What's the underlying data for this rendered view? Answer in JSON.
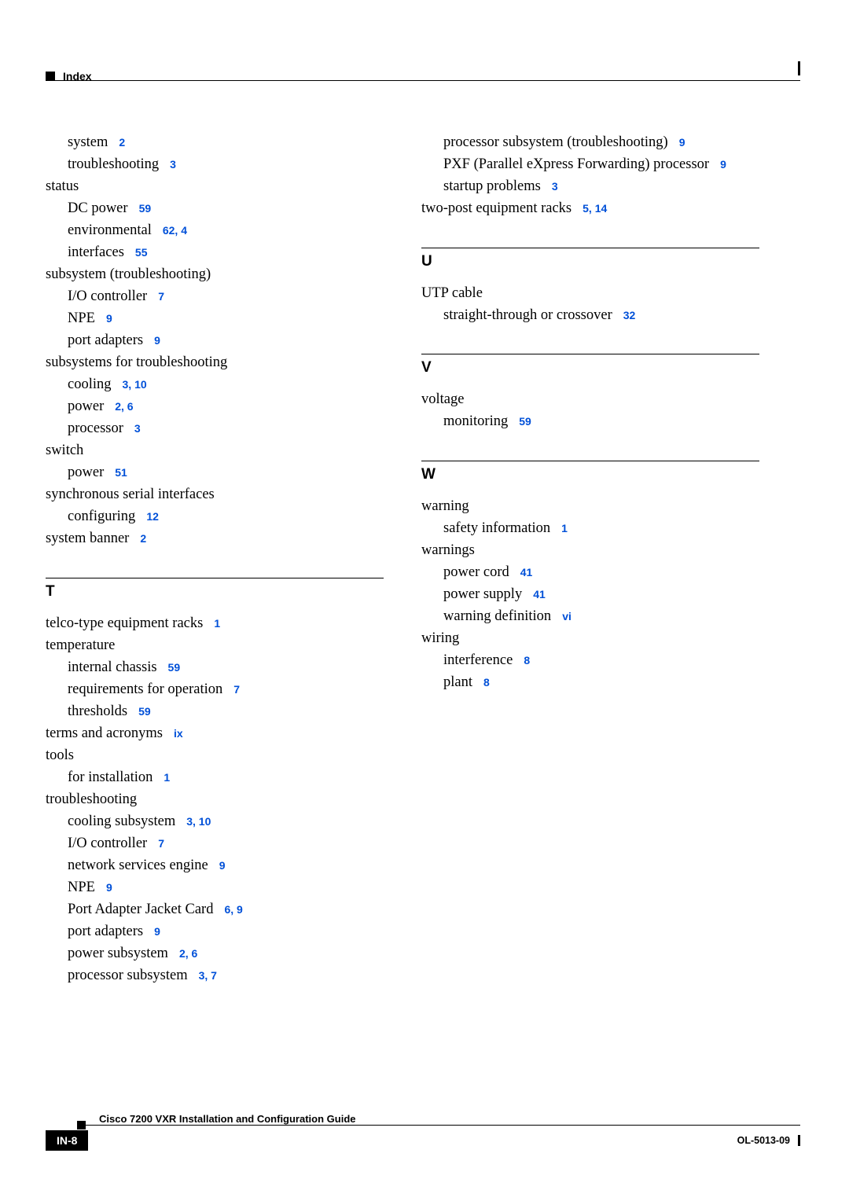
{
  "header": {
    "label": "Index"
  },
  "footer": {
    "doc_title": "Cisco 7200 VXR Installation and Configuration Guide",
    "page_number": "IN-8",
    "doc_number": "OL-5013-09"
  },
  "link_color": "#0050d8",
  "left_column": [
    {
      "level": 1,
      "text": "system",
      "refs": "2"
    },
    {
      "level": 1,
      "text": "troubleshooting",
      "refs": "3"
    },
    {
      "level": 0,
      "text": "status",
      "refs": ""
    },
    {
      "level": 1,
      "text": "DC power",
      "refs": "59"
    },
    {
      "level": 1,
      "text": "environmental",
      "refs": "62, 4"
    },
    {
      "level": 1,
      "text": "interfaces",
      "refs": "55"
    },
    {
      "level": 0,
      "text": "subsystem (troubleshooting)",
      "refs": ""
    },
    {
      "level": 1,
      "text": "I/O controller",
      "refs": "7"
    },
    {
      "level": 1,
      "text": "NPE",
      "refs": "9"
    },
    {
      "level": 1,
      "text": "port adapters",
      "refs": "9"
    },
    {
      "level": 0,
      "text": "subsystems for troubleshooting",
      "refs": ""
    },
    {
      "level": 1,
      "text": "cooling",
      "refs": "3, 10"
    },
    {
      "level": 1,
      "text": "power",
      "refs": "2, 6"
    },
    {
      "level": 1,
      "text": "processor",
      "refs": "3"
    },
    {
      "level": 0,
      "text": "switch",
      "refs": ""
    },
    {
      "level": 1,
      "text": "power",
      "refs": "51"
    },
    {
      "level": 0,
      "text": "synchronous serial interfaces",
      "refs": ""
    },
    {
      "level": 1,
      "text": "configuring",
      "refs": "12"
    },
    {
      "level": 0,
      "text": "system banner",
      "refs": "2"
    },
    {
      "letter": "T"
    },
    {
      "level": 0,
      "text": "telco-type equipment racks",
      "refs": "1"
    },
    {
      "level": 0,
      "text": "temperature",
      "refs": ""
    },
    {
      "level": 1,
      "text": "internal chassis",
      "refs": "59"
    },
    {
      "level": 1,
      "text": "requirements for operation",
      "refs": "7"
    },
    {
      "level": 1,
      "text": "thresholds",
      "refs": "59"
    },
    {
      "level": 0,
      "text": "terms and acronyms",
      "refs": "ix"
    },
    {
      "level": 0,
      "text": "tools",
      "refs": ""
    },
    {
      "level": 1,
      "text": "for installation",
      "refs": "1"
    },
    {
      "level": 0,
      "text": "troubleshooting",
      "refs": ""
    },
    {
      "level": 1,
      "text": "cooling subsystem",
      "refs": "3, 10"
    },
    {
      "level": 1,
      "text": "I/O controller",
      "refs": "7"
    },
    {
      "level": 1,
      "text": "network services engine",
      "refs": "9"
    },
    {
      "level": 1,
      "text": "NPE",
      "refs": "9"
    },
    {
      "level": 1,
      "text": "Port Adapter Jacket Card",
      "refs": "6, 9"
    },
    {
      "level": 1,
      "text": "port adapters",
      "refs": "9"
    },
    {
      "level": 1,
      "text": "power subsystem",
      "refs": "2, 6"
    },
    {
      "level": 1,
      "text": "processor subsystem",
      "refs": "3, 7"
    }
  ],
  "right_column": [
    {
      "level": 1,
      "text": "processor subsystem (troubleshooting)",
      "refs": "9"
    },
    {
      "level": 1,
      "text": "PXF (Parallel eXpress Forwarding) processor",
      "refs": "9"
    },
    {
      "level": 1,
      "text": "startup problems",
      "refs": "3"
    },
    {
      "level": 0,
      "text": "two-post equipment racks",
      "refs": "5, 14"
    },
    {
      "letter": "U"
    },
    {
      "level": 0,
      "text": "UTP cable",
      "refs": ""
    },
    {
      "level": 1,
      "text": "straight-through or crossover",
      "refs": "32"
    },
    {
      "letter": "V"
    },
    {
      "level": 0,
      "text": "voltage",
      "refs": ""
    },
    {
      "level": 1,
      "text": "monitoring",
      "refs": "59"
    },
    {
      "letter": "W"
    },
    {
      "level": 0,
      "text": "warning",
      "refs": ""
    },
    {
      "level": 1,
      "text": "safety information",
      "refs": "1"
    },
    {
      "level": 0,
      "text": "warnings",
      "refs": ""
    },
    {
      "level": 1,
      "text": "power cord",
      "refs": "41"
    },
    {
      "level": 1,
      "text": "power supply",
      "refs": "41"
    },
    {
      "level": 1,
      "text": "warning definition",
      "refs": "vi"
    },
    {
      "level": 0,
      "text": "wiring",
      "refs": ""
    },
    {
      "level": 1,
      "text": "interference",
      "refs": "8"
    },
    {
      "level": 1,
      "text": "plant",
      "refs": "8"
    }
  ]
}
